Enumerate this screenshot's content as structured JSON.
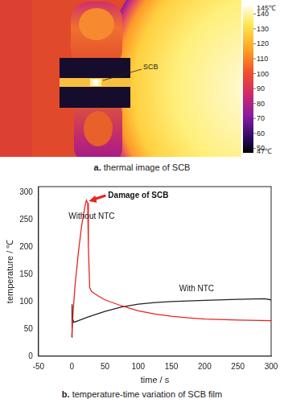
{
  "thermal_image": {
    "caption": "a. thermal image of SCB",
    "label": "SCB",
    "colorbar": {
      "range": [
        47,
        145
      ],
      "ticks": [
        {
          "value": 47,
          "label": "47℃"
        },
        50,
        60,
        70,
        80,
        90,
        100,
        110,
        120,
        130,
        140,
        {
          "value": 145,
          "label": "145℃"
        }
      ]
    }
  },
  "chart_data": {
    "type": "line",
    "caption": "b. temperature-time variation of SCB film",
    "x_label": "time / s",
    "y_label": "temperature / ℃",
    "annotations": [
      "Damage of SCB"
    ],
    "series": [
      {
        "name": "Without NTC",
        "color": "#e8231e",
        "x": [
          0,
          2,
          5,
          10,
          15,
          20,
          22,
          24,
          25,
          27,
          30,
          40,
          50,
          75,
          100,
          125,
          150,
          175,
          200,
          250,
          300
        ],
        "values": [
          35,
          80,
          130,
          190,
          240,
          275,
          285,
          280,
          200,
          125,
          118,
          110,
          103,
          92,
          83,
          77,
          73,
          70,
          68,
          66,
          65
        ]
      },
      {
        "name": "With NTC",
        "color": "#222222",
        "x": [
          0,
          0.5,
          1,
          3,
          10,
          25,
          50,
          75,
          100,
          125,
          150,
          200,
          250,
          290,
          300
        ],
        "values": [
          35,
          95,
          70,
          62,
          65,
          72,
          82,
          90,
          95,
          98,
          100,
          102,
          104,
          105,
          103
        ]
      }
    ],
    "xlim": [
      -50,
      300
    ],
    "xticks": [
      -50,
      0,
      50,
      100,
      150,
      200,
      250,
      300
    ],
    "ylim": [
      0,
      310
    ],
    "yticks": [
      0,
      50,
      100,
      150,
      200,
      250,
      300
    ],
    "grid": false
  }
}
